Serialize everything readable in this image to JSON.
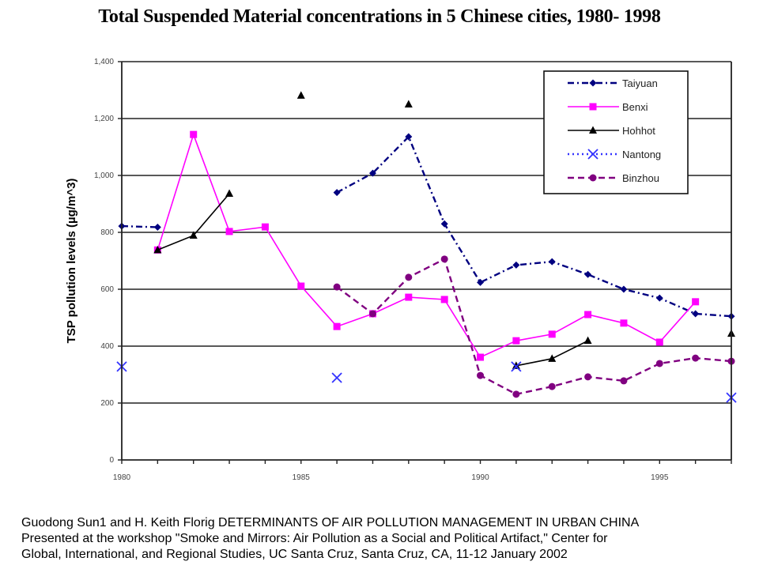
{
  "chart_data": {
    "type": "line",
    "title": "Total Suspended Material concentrations in 5 Chinese cities, 1980- 1998",
    "xlabel": "",
    "ylabel": "TSP pollution levels (µg/m^3)",
    "xlim": [
      1980,
      1997
    ],
    "ylim": [
      0,
      1400
    ],
    "x_ticks": [
      1980,
      1985,
      1990,
      1995
    ],
    "x_tick_labels": [
      "1980",
      "1985",
      "1990",
      "1995"
    ],
    "y_ticks": [
      0,
      200,
      400,
      600,
      800,
      1000,
      1200,
      1400
    ],
    "y_tick_labels": [
      "0",
      "200",
      "400",
      "600",
      "800",
      "1,000",
      "1,200",
      "1,400"
    ],
    "grid": "horizontal",
    "legend_position": "top-right",
    "series": [
      {
        "name": "Taiyuan",
        "color": "#000080",
        "marker": "diamond",
        "line": "dash-dot",
        "points": [
          [
            1980,
            822
          ],
          [
            1981,
            818
          ],
          [
            1986,
            940
          ],
          [
            1987,
            1008
          ],
          [
            1988,
            1136
          ],
          [
            1989,
            830
          ],
          [
            1990,
            624
          ],
          [
            1991,
            685
          ],
          [
            1992,
            697
          ],
          [
            1993,
            652
          ],
          [
            1994,
            600
          ],
          [
            1995,
            569
          ],
          [
            1996,
            514
          ],
          [
            1997,
            505
          ]
        ],
        "segments": [
          [
            1980,
            1981
          ],
          [
            1986,
            1997
          ]
        ]
      },
      {
        "name": "Benxi",
        "color": "#ff00ff",
        "marker": "square",
        "line": "solid",
        "points": [
          [
            1981,
            738
          ],
          [
            1982,
            1144
          ],
          [
            1983,
            803
          ],
          [
            1984,
            819
          ],
          [
            1985,
            611
          ],
          [
            1986,
            469
          ],
          [
            1987,
            514
          ],
          [
            1988,
            572
          ],
          [
            1989,
            564
          ],
          [
            1990,
            361
          ],
          [
            1991,
            419
          ],
          [
            1992,
            442
          ],
          [
            1993,
            511
          ],
          [
            1994,
            481
          ],
          [
            1995,
            414
          ],
          [
            1996,
            556
          ]
        ],
        "segments": [
          [
            1981,
            1996
          ]
        ]
      },
      {
        "name": "Hohhot",
        "color": "#000000",
        "marker": "triangle",
        "line": "solid",
        "points": [
          [
            1981,
            738
          ],
          [
            1982,
            789
          ],
          [
            1983,
            936
          ],
          [
            1985,
            1281
          ],
          [
            1988,
            1250
          ],
          [
            1991,
            331
          ],
          [
            1992,
            356
          ],
          [
            1993,
            419
          ],
          [
            1997,
            444
          ]
        ],
        "segments": [
          [
            1981,
            1983
          ],
          [
            1991,
            1993
          ]
        ]
      },
      {
        "name": "Nantong",
        "color": "#3333ff",
        "marker": "x",
        "line": "dotted",
        "points": [
          [
            1980,
            328
          ],
          [
            1986,
            289
          ],
          [
            1991,
            328
          ],
          [
            1997,
            219
          ]
        ],
        "segments": []
      },
      {
        "name": "Binzhou",
        "color": "#800080",
        "marker": "circle",
        "line": "dashed",
        "points": [
          [
            1986,
            608
          ],
          [
            1987,
            514
          ],
          [
            1988,
            642
          ],
          [
            1989,
            706
          ],
          [
            1990,
            297
          ],
          [
            1991,
            231
          ],
          [
            1992,
            258
          ],
          [
            1993,
            292
          ],
          [
            1994,
            278
          ],
          [
            1995,
            339
          ],
          [
            1996,
            358
          ],
          [
            1997,
            347
          ]
        ],
        "segments": [
          [
            1986,
            1997
          ]
        ]
      }
    ]
  },
  "footer": {
    "line1": "Guodong Sun1 and H. Keith Florig DETERMINANTS OF AIR POLLUTION MANAGEMENT IN URBAN CHINA",
    "line2": "Presented at the workshop \"Smoke and Mirrors: Air Pollution as a Social and Political Artifact,\" Center for",
    "line3": "Global, International, and Regional Studies, UC Santa Cruz, Santa Cruz, CA, 11-12 January 2002"
  }
}
